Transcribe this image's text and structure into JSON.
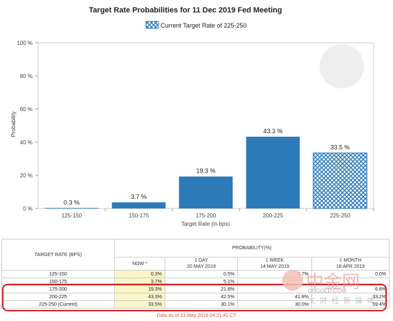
{
  "chart_data": {
    "type": "bar",
    "title": "Target Rate Probabilities for 11 Dec 2019 Fed Meeting",
    "legend": "Current Target Rate of 225-250",
    "xlabel": "Target Rate (in bps)",
    "ylabel": "Probability",
    "categories": [
      "125-150",
      "150-175",
      "175-200",
      "200-225",
      "225-250"
    ],
    "values": [
      0.3,
      3.7,
      19.3,
      43.3,
      33.5
    ],
    "value_labels": [
      "0.3 %",
      "3.7 %",
      "19.3 %",
      "43.3 %",
      "33.5 %"
    ],
    "current_category": "225-250",
    "ylim": [
      0,
      100
    ],
    "yticks": [
      "0 %",
      "20 %",
      "40 %",
      "60 %",
      "80 %",
      "100 %"
    ],
    "bar_color": "#2d7ab8",
    "grid": false
  },
  "table": {
    "col_target": "TARGET RATE (BPS)",
    "col_probability": "PROBABILITY(%)",
    "sub_now": "NOW *",
    "sub_1day_label": "1 DAY",
    "sub_1day_date": "20 MAY 2019",
    "sub_1week_label": "1 WEEK",
    "sub_1week_date": "14 MAY 2019",
    "sub_1month_label": "1 MONTH",
    "sub_1month_date": "18 APR 2019",
    "rows": [
      {
        "rate": "125-150",
        "now": "0.3%",
        "day": "0.5%",
        "week": "0.7%",
        "month": "0.0%"
      },
      {
        "rate": "150-175",
        "now": "3.7%",
        "day": "5.1%",
        "week": "",
        "month": ""
      },
      {
        "rate": "175-200",
        "now": "19.3%",
        "day": "21.8%",
        "week": "",
        "month": "6.8%"
      },
      {
        "rate": "200-225",
        "now": "43.3%",
        "day": "42.5%",
        "week": "41.8%",
        "month": "33.2%"
      },
      {
        "rate": "225-250 (Current)",
        "now": "33.5%",
        "day": "30.1%",
        "week": "30.0%",
        "month": "59.4%"
      }
    ],
    "footnote": "Data as of 21 May 2019 04:21:42 CT"
  },
  "watermark": {
    "cn": "中金网",
    "en": "CNGOLD.COM",
    "cn_sub": "文财经新媒体"
  }
}
